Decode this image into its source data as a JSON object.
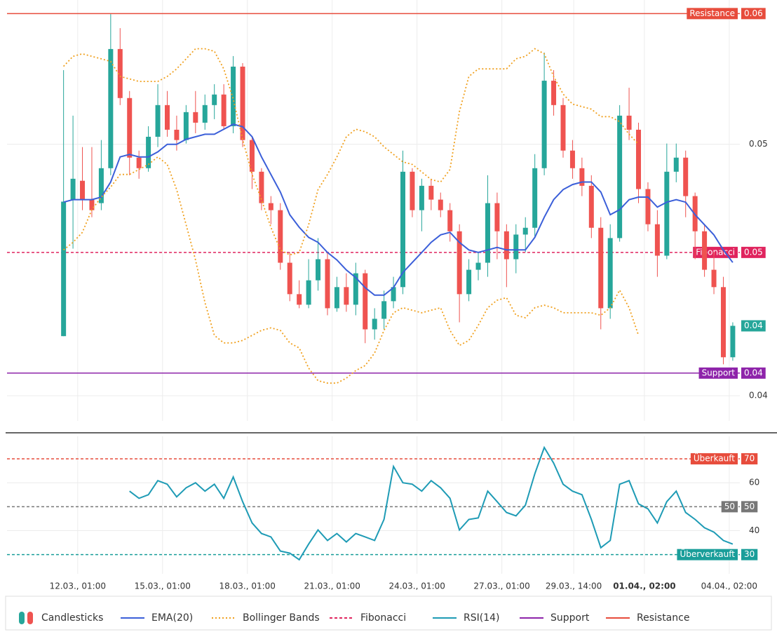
{
  "chart_data": [
    {
      "type": "candlestick",
      "name": "Candlesticks",
      "x": [
        -12,
        -4,
        4,
        12,
        20,
        28,
        36,
        44,
        52,
        60,
        68,
        76,
        84,
        92,
        100,
        108,
        116,
        124,
        132,
        140,
        148,
        156,
        164,
        172,
        180,
        188,
        196,
        204,
        212,
        220,
        228,
        236,
        244,
        252,
        260,
        268,
        276,
        284,
        292,
        300,
        308,
        316,
        324,
        332,
        340,
        348,
        356,
        364,
        372,
        380,
        388,
        396,
        404,
        412,
        420,
        428,
        436,
        444,
        452,
        460,
        468,
        476,
        484,
        492,
        500,
        508,
        516,
        524,
        532,
        540,
        548,
        556
      ],
      "open": [
        0.04237,
        0.0478,
        0.04855,
        0.0478,
        0.04766,
        0.04905,
        0.05379,
        0.05184,
        0.04947,
        0.04905,
        0.0503,
        0.05156,
        0.05058,
        0.05017,
        0.05128,
        0.05086,
        0.05156,
        0.05198,
        0.05072,
        0.05309,
        0.05017,
        0.04891,
        0.04766,
        0.04738,
        0.04529,
        0.04404,
        0.04362,
        0.04459,
        0.04543,
        0.04348,
        0.04432,
        0.04362,
        0.04487,
        0.04264,
        0.04306,
        0.04376,
        0.04432,
        0.04891,
        0.04738,
        0.04835,
        0.0478,
        0.04738,
        0.04654,
        0.04404,
        0.04501,
        0.04529,
        0.04766,
        0.04654,
        0.04543,
        0.04641,
        0.04668,
        0.04905,
        0.05253,
        0.05156,
        0.04975,
        0.04905,
        0.04835,
        0.04668,
        0.04348,
        0.04627,
        0.05114,
        0.05058,
        0.04822,
        0.04682,
        0.04557,
        0.04891,
        0.04947,
        0.04794,
        0.04654,
        0.04501,
        0.04432,
        0.04153
      ],
      "high": [
        0.05295,
        0.05114,
        0.04989,
        0.04989,
        0.05017,
        0.05518,
        0.05462,
        0.05212,
        0.04975,
        0.05072,
        0.05239,
        0.05212,
        0.05114,
        0.05156,
        0.05212,
        0.05198,
        0.05239,
        0.05239,
        0.05351,
        0.05323,
        0.0503,
        0.04905,
        0.04794,
        0.04766,
        0.04571,
        0.04459,
        0.04543,
        0.04627,
        0.04571,
        0.04473,
        0.04487,
        0.04529,
        0.04501,
        0.04348,
        0.04418,
        0.04473,
        0.04975,
        0.04905,
        0.04863,
        0.04863,
        0.04808,
        0.04766,
        0.04682,
        0.04543,
        0.04571,
        0.04877,
        0.04808,
        0.04682,
        0.04682,
        0.0471,
        0.04961,
        0.05365,
        0.05295,
        0.05184,
        0.05017,
        0.04947,
        0.04877,
        0.0471,
        0.04682,
        0.05156,
        0.05225,
        0.05086,
        0.04849,
        0.04738,
        0.05003,
        0.05003,
        0.04975,
        0.04808,
        0.04682,
        0.04571,
        0.04473,
        0.04292
      ],
      "low": [
        0.04237,
        0.04585,
        0.04738,
        0.0471,
        0.04738,
        0.04877,
        0.05156,
        0.04877,
        0.04863,
        0.04891,
        0.04989,
        0.0503,
        0.04975,
        0.05003,
        0.05044,
        0.05058,
        0.051,
        0.05058,
        0.05044,
        0.04989,
        0.04822,
        0.04738,
        0.04682,
        0.04501,
        0.04376,
        0.04348,
        0.04348,
        0.04418,
        0.0432,
        0.04334,
        0.04334,
        0.0432,
        0.04209,
        0.04223,
        0.04264,
        0.04348,
        0.04404,
        0.0471,
        0.04654,
        0.04738,
        0.0471,
        0.04613,
        0.04292,
        0.04376,
        0.04459,
        0.04473,
        0.04543,
        0.04432,
        0.04487,
        0.04571,
        0.04627,
        0.04877,
        0.05114,
        0.04947,
        0.04863,
        0.04794,
        0.04627,
        0.04264,
        0.04306,
        0.04613,
        0.05017,
        0.04766,
        0.04654,
        0.04473,
        0.04543,
        0.04849,
        0.0471,
        0.04543,
        0.04473,
        0.04404,
        0.04125,
        0.04139
      ],
      "close": [
        0.04772,
        0.04863,
        0.0478,
        0.04738,
        0.04905,
        0.05379,
        0.05184,
        0.04947,
        0.04905,
        0.0503,
        0.05156,
        0.05058,
        0.05017,
        0.05128,
        0.05086,
        0.05156,
        0.05198,
        0.05072,
        0.05309,
        0.05017,
        0.04891,
        0.04766,
        0.04738,
        0.04529,
        0.04404,
        0.04362,
        0.04459,
        0.04543,
        0.04348,
        0.04432,
        0.04362,
        0.04487,
        0.04264,
        0.04306,
        0.04376,
        0.04432,
        0.04891,
        0.04738,
        0.04835,
        0.0478,
        0.04738,
        0.04654,
        0.04404,
        0.04501,
        0.04529,
        0.04766,
        0.04654,
        0.04543,
        0.04641,
        0.04668,
        0.04905,
        0.05253,
        0.05156,
        0.04975,
        0.04905,
        0.04835,
        0.04668,
        0.04348,
        0.04627,
        0.05114,
        0.05058,
        0.04822,
        0.04682,
        0.04557,
        0.04891,
        0.04947,
        0.04794,
        0.04654,
        0.04501,
        0.04432,
        0.04153,
        0.04278
      ],
      "up_color": "#26a69a",
      "down_color": "#ef5350",
      "last_price_label": "0.04",
      "xlim": [
        -60,
        562
      ],
      "ylim": [
        0.039,
        0.05574
      ],
      "yticks": [
        0.05,
        0.04
      ],
      "grid": true,
      "lines": [
        {
          "name": "EMA(20)",
          "color": "#3b5fd9",
          "style": "solid",
          "values": [
            0.0477,
            0.0478,
            0.0478,
            0.0478,
            0.0479,
            0.0485,
            0.0495,
            0.0496,
            0.0495,
            0.0495,
            0.0497,
            0.05,
            0.05,
            0.0502,
            0.0503,
            0.0504,
            0.0504,
            0.0506,
            0.0508,
            0.0507,
            0.0503,
            0.0495,
            0.0488,
            0.0481,
            0.0472,
            0.0467,
            0.0463,
            0.0461,
            0.0457,
            0.0454,
            0.045,
            0.0447,
            0.0443,
            0.044,
            0.044,
            0.0443,
            0.0449,
            0.0453,
            0.0457,
            0.0461,
            0.0464,
            0.0465,
            0.0461,
            0.0458,
            0.0457,
            0.0458,
            0.0459,
            0.0458,
            0.0458,
            0.0458,
            0.0463,
            0.0471,
            0.0478,
            0.0482,
            0.0484,
            0.0485,
            0.0485,
            0.0481,
            0.0472,
            0.0474,
            0.0478,
            0.0479,
            0.0479,
            0.0475,
            0.0477,
            0.0478,
            0.0477,
            0.0472,
            0.0468,
            0.0464,
            0.0458,
            0.0453
          ]
        },
        {
          "name": "Bollinger Bands",
          "color": "#f0a01e",
          "style": "dotted",
          "upper": [
            0.0531,
            0.0535,
            0.0536,
            0.0535,
            0.0534,
            0.0533,
            0.0527,
            0.0526,
            0.0525,
            0.0525,
            0.0525,
            0.0527,
            0.053,
            0.0534,
            0.0538,
            0.0538,
            0.0537,
            0.053,
            0.0518,
            0.0502,
            0.0488,
            0.0478,
            0.0467,
            0.0458,
            0.0456,
            0.0457,
            0.0468,
            0.0482,
            0.0488,
            0.0495,
            0.0503,
            0.0506,
            0.0505,
            0.0503,
            0.0499,
            0.0496,
            0.0493,
            0.0492,
            0.0489,
            0.0486,
            0.0485,
            0.049,
            0.0513,
            0.0527,
            0.053,
            0.053,
            0.053,
            0.053,
            0.0534,
            0.0535,
            0.0538,
            0.0536,
            0.0527,
            0.052,
            0.0516,
            0.0515,
            0.0514,
            0.0511,
            0.0511,
            0.0509,
            0.0504,
            0.05,
            null,
            null,
            null,
            null,
            null,
            null,
            null,
            null,
            null,
            null
          ],
          "lower": [
            0.0458,
            0.0461,
            0.0465,
            0.0474,
            0.0479,
            0.0483,
            0.0488,
            0.0488,
            0.049,
            0.0492,
            0.0495,
            0.0492,
            0.0482,
            0.0468,
            0.0454,
            0.0437,
            0.0424,
            0.0421,
            0.0421,
            0.0422,
            0.0424,
            0.0426,
            0.0427,
            0.0426,
            0.0421,
            0.0419,
            0.0411,
            0.0406,
            0.0405,
            0.0405,
            0.0407,
            0.041,
            0.0412,
            0.0417,
            0.0426,
            0.0433,
            0.0435,
            0.0434,
            0.0433,
            0.0434,
            0.0435,
            0.0426,
            0.042,
            0.0422,
            0.0428,
            0.0435,
            0.0438,
            0.0439,
            0.0432,
            0.0431,
            0.0435,
            0.0436,
            0.0435,
            0.0433,
            0.0433,
            0.0433,
            0.0433,
            0.0432,
            0.0435,
            0.0442,
            0.0435,
            0.0424,
            null,
            null,
            null,
            null,
            null,
            null,
            null,
            null,
            null,
            null
          ]
        }
      ],
      "levels": [
        {
          "name": "Resistance",
          "value": 0.0552,
          "value_label": "0.06",
          "color": "#e74c3c",
          "style": "solid"
        },
        {
          "name": "Fibonacci",
          "value": 0.0457,
          "value_label": "0.05",
          "color": "#e0245e",
          "style": "dashed"
        },
        {
          "name": "Support",
          "value": 0.0409,
          "value_label": "0.04",
          "color": "#8e24aa",
          "style": "solid"
        }
      ]
    },
    {
      "type": "line",
      "name": "RSI(14)",
      "color": "#1e9bb5",
      "x": [
        -12,
        -4,
        4,
        12,
        20,
        28,
        36,
        44,
        52,
        60,
        68,
        76,
        84,
        92,
        100,
        108,
        116,
        124,
        132,
        140,
        148,
        156,
        164,
        172,
        180,
        188,
        196,
        204,
        212,
        220,
        228,
        236,
        244,
        252,
        260,
        268,
        276,
        284,
        292,
        300,
        308,
        316,
        324,
        332,
        340,
        348,
        356,
        364,
        372,
        380,
        388,
        396,
        404,
        412,
        420,
        428,
        436,
        444,
        452,
        460,
        468,
        476,
        484,
        492,
        500,
        508,
        516,
        524,
        532,
        540,
        548,
        556
      ],
      "values": [
        null,
        null,
        null,
        null,
        null,
        null,
        null,
        56.5,
        53.5,
        55.0,
        60.9,
        59.4,
        54.1,
        57.9,
        60.0,
        56.5,
        59.4,
        53.5,
        62.4,
        52.1,
        43.2,
        38.8,
        37.4,
        31.5,
        30.6,
        27.9,
        34.4,
        40.3,
        35.9,
        38.8,
        35.3,
        38.8,
        37.4,
        35.9,
        44.7,
        66.8,
        60.0,
        59.4,
        56.5,
        60.9,
        57.9,
        53.5,
        40.3,
        44.7,
        45.3,
        56.5,
        52.1,
        47.6,
        46.2,
        50.6,
        63.8,
        74.7,
        68.2,
        59.4,
        56.5,
        55.0,
        44.7,
        32.9,
        35.9,
        59.4,
        60.9,
        51.2,
        49.1,
        43.2,
        52.1,
        56.5,
        47.6,
        44.7,
        41.2,
        39.4,
        35.9,
        34.4
      ],
      "xlim": [
        -60,
        562
      ],
      "ylim": [
        22,
        79.4
      ],
      "yticks": [
        40,
        60
      ],
      "grid": true,
      "xticks": [
        {
          "value": 0,
          "label": "12.03., 01:00"
        },
        {
          "value": 72,
          "label": "15.03., 01:00"
        },
        {
          "value": 144,
          "label": "18.03., 01:00"
        },
        {
          "value": 216,
          "label": "21.03., 01:00"
        },
        {
          "value": 288,
          "label": "24.03., 01:00"
        },
        {
          "value": 360,
          "label": "27.03., 01:00"
        },
        {
          "value": 421,
          "label": "29.03., 14:00"
        },
        {
          "value": 481,
          "label": "01.04., 02:00",
          "bold": true
        },
        {
          "value": 553,
          "label": "04.04., 02:00"
        }
      ],
      "levels": [
        {
          "name": "Überkauft",
          "value": 70,
          "color": "#e74c3c",
          "style": "dashed"
        },
        {
          "name": "50",
          "value": 50,
          "color": "#777777",
          "style": "dashed"
        },
        {
          "name": "Überverkauft",
          "value": 30,
          "color": "#1a9e9a",
          "style": "dashed"
        }
      ]
    }
  ]
}
